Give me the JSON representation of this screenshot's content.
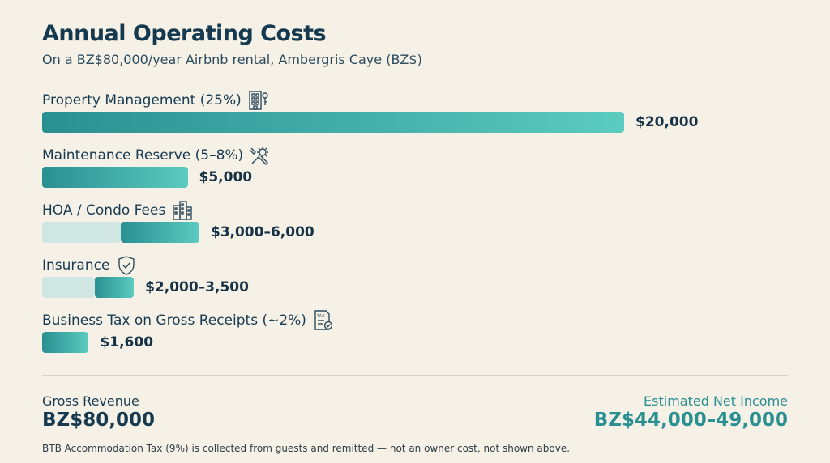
{
  "chart_data": {
    "type": "bar",
    "orientation": "horizontal",
    "title": "Annual Operating Costs",
    "subtitle": "On a BZ$80,000/year Airbnb rental, Ambergris Caye (BZ$)",
    "xlim": [
      0,
      20000
    ],
    "categories": [
      "Property Management (25%)",
      "Maintenance Reserve (5–8%)",
      "HOA / Condo Fees",
      "Insurance",
      "Business Tax on Gross Receipts (~2%)"
    ],
    "bars": [
      {
        "low": null,
        "high": 20000,
        "label": "$20,000",
        "icon": "building-key-icon"
      },
      {
        "low": null,
        "high": 5000,
        "label": "$5,000",
        "icon": "wrench-gear-icon"
      },
      {
        "low": 3000,
        "high": 6000,
        "label": "$3,000–6,000",
        "icon": "condo-building-icon"
      },
      {
        "low": 2000,
        "high": 3500,
        "label": "$2,000–3,500",
        "icon": "shield-check-icon"
      },
      {
        "low": null,
        "high": 1600,
        "label": "$1,600",
        "icon": "tax-document-icon"
      }
    ],
    "colors": {
      "bar": "#2a8f91",
      "bar_end": "#5ccbc0",
      "range_light": "#cfe6e2"
    }
  },
  "summary": {
    "gross_label": "Gross Revenue",
    "gross_value": "BZ$80,000",
    "net_label": "Estimated Net Income",
    "net_value": "BZ$44,000–49,000"
  },
  "footnote": "BTB Accommodation Tax (9%) is collected from guests and remitted — not an owner cost, not shown above."
}
